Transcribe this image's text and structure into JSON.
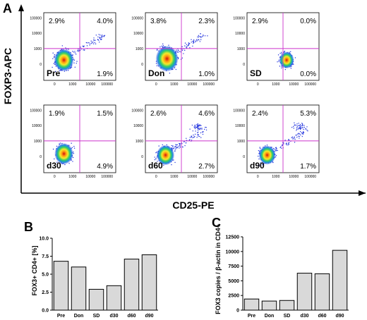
{
  "panel_labels": {
    "a": "A",
    "b": "B",
    "c": "C"
  },
  "colors": {
    "gate": "#cc33cc",
    "bar_fill": "#d9d9d9",
    "axis": "#000000"
  },
  "panel_a": {
    "y_axis_label": "FOXP3-APC",
    "x_axis_label": "CD25-PE",
    "tick_labels": [
      "100000",
      "10000",
      "1000",
      "0"
    ],
    "x_tick_labels": [
      "0",
      "1000",
      "10000",
      "100000"
    ]
  },
  "chart_data": [
    {
      "type": "scatter",
      "panel": "A",
      "xlabel": "CD25-PE",
      "ylabel": "FOXP3-APC",
      "axis_ticks": [
        "0",
        "1000",
        "10000",
        "100000"
      ],
      "plots": [
        {
          "name": "Pre",
          "upper_left": "2.9%",
          "upper_right": "4.0%",
          "lower_right": "1.9%"
        },
        {
          "name": "Don",
          "upper_left": "3.8%",
          "upper_right": "2.3%",
          "lower_right": "1.0%"
        },
        {
          "name": "SD",
          "upper_left": "2.9%",
          "upper_right": "0.0%",
          "lower_right": "0.0%"
        },
        {
          "name": "d30",
          "upper_left": "1.9%",
          "upper_right": "1.5%",
          "lower_right": "4.9%"
        },
        {
          "name": "d60",
          "upper_left": "2.6%",
          "upper_right": "4.6%",
          "lower_right": "2.7%"
        },
        {
          "name": "d90",
          "upper_left": "2.4%",
          "upper_right": "5.3%",
          "lower_right": "1.7%"
        }
      ]
    },
    {
      "type": "bar",
      "panel": "B",
      "categories": [
        "Pre",
        "Don",
        "SD",
        "d30",
        "d60",
        "d90"
      ],
      "values": [
        6.8,
        6.0,
        2.9,
        3.4,
        7.1,
        7.7
      ],
      "ylabel": "FOX3+ CD4+ [%]",
      "ylim": [
        0,
        10.0
      ],
      "yticks": [
        "0.0",
        "2.5",
        "5.0",
        "7.5",
        "10.0"
      ]
    },
    {
      "type": "bar",
      "panel": "C",
      "categories": [
        "Pre",
        "Don",
        "SD",
        "d30",
        "d60",
        "d90"
      ],
      "values": [
        1900,
        1550,
        1650,
        6300,
        6200,
        10200
      ],
      "ylabel": "FOX3 copies / β-actin in CD4+",
      "ylim": [
        0,
        12500
      ],
      "yticks": [
        "0",
        "2500",
        "5000",
        "7500",
        "10000",
        "12500"
      ]
    }
  ]
}
